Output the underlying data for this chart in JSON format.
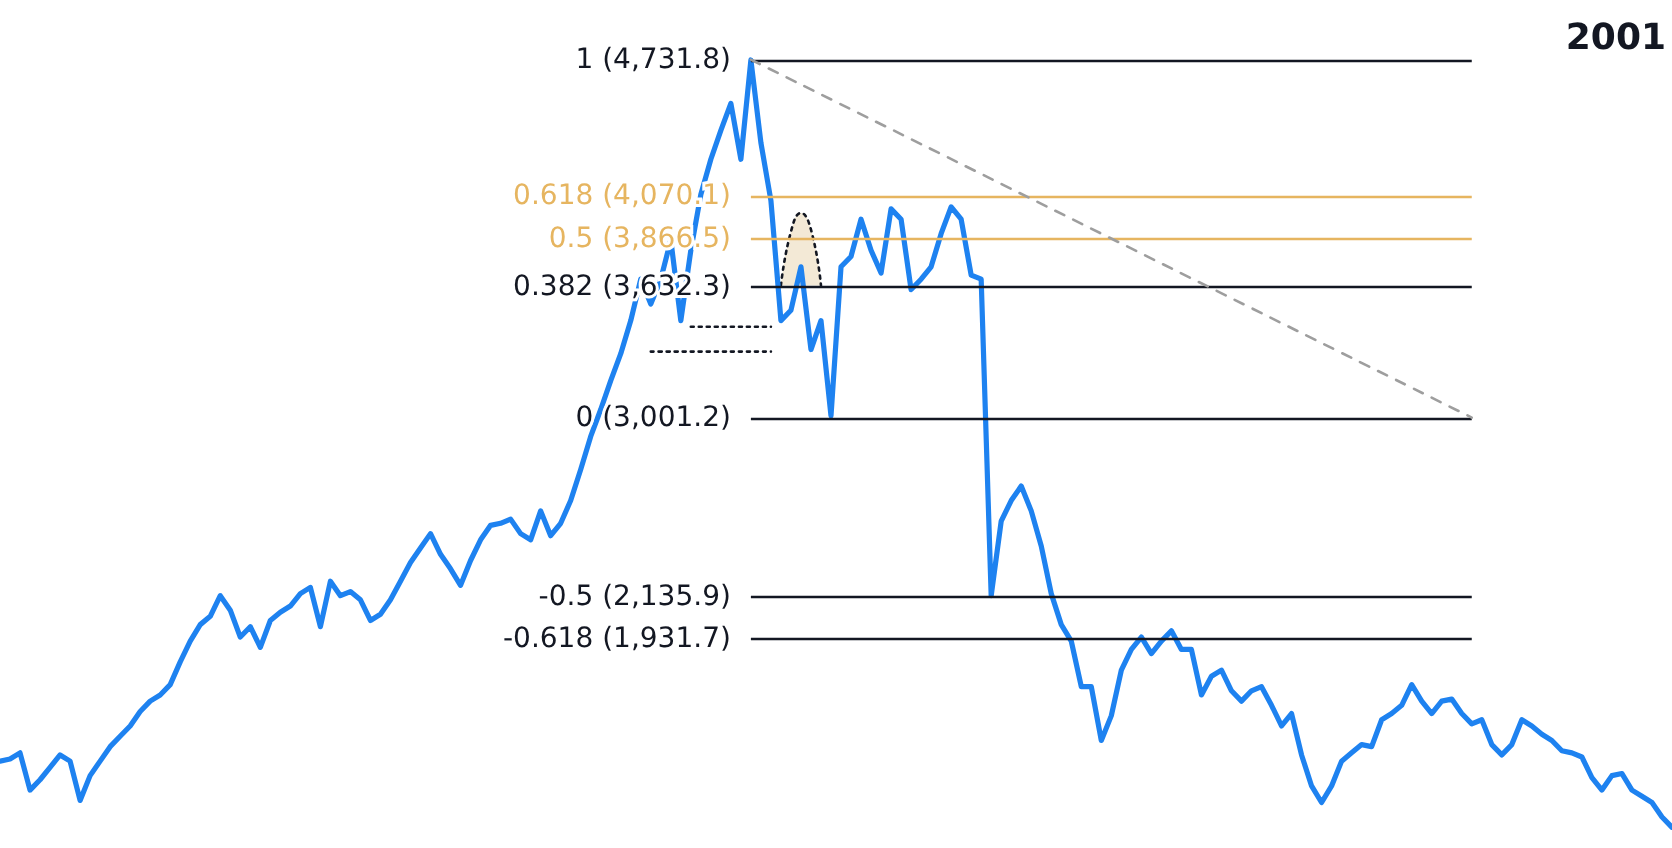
{
  "chart_data": {
    "type": "line",
    "marker": "none",
    "tick_labels": false,
    "ylim": [
      920,
      5020
    ],
    "annotations": [
      "2001"
    ],
    "categories": [
      null,
      null,
      null,
      null,
      null,
      null,
      null,
      null,
      null,
      null,
      null,
      null,
      null,
      null,
      null,
      null,
      null,
      null,
      null,
      null,
      null,
      null,
      null,
      null,
      null,
      null,
      null,
      null,
      null,
      null,
      null,
      null,
      null,
      null,
      null,
      null,
      null,
      null,
      null,
      null,
      null,
      null,
      null,
      null,
      null,
      null,
      null,
      null,
      null,
      null,
      null,
      null,
      null,
      null,
      null,
      null,
      null,
      null,
      null,
      null,
      null,
      null,
      null,
      null,
      null,
      null,
      null,
      null,
      null,
      null,
      null,
      null,
      null,
      null,
      null,
      null,
      null,
      null,
      null,
      null,
      null,
      null,
      null,
      null,
      null,
      null,
      null,
      null,
      null,
      null,
      null,
      null,
      null,
      null,
      null,
      null,
      null,
      null,
      null,
      null,
      null,
      null,
      null,
      null,
      null,
      null,
      null,
      null,
      null,
      null,
      null,
      null,
      null,
      null,
      null,
      null,
      null,
      null,
      null,
      null,
      null,
      null,
      null,
      null,
      null,
      null,
      null,
      null,
      null,
      null,
      null,
      null,
      null,
      null,
      null,
      null,
      null,
      null,
      null,
      null,
      null,
      null,
      null,
      null,
      null,
      null,
      null,
      null,
      null,
      null,
      null,
      null,
      null,
      null,
      null,
      null,
      null,
      null,
      null,
      null,
      null,
      null,
      null,
      null,
      null,
      null,
      null,
      null
    ],
    "series": [
      {
        "color": "#1e82f0",
        "values": [
          1340,
          1350,
          1380,
          1200,
          1250,
          1310,
          1370,
          1340,
          1150,
          1270,
          1340,
          1410,
          1460,
          1510,
          1580,
          1630,
          1660,
          1710,
          1820,
          1920,
          2000,
          2040,
          2140,
          2070,
          1940,
          1990,
          1890,
          2020,
          2060,
          2090,
          2150,
          2180,
          1990,
          2210,
          2140,
          2160,
          2120,
          2020,
          2050,
          2120,
          2210,
          2300,
          2370,
          2440,
          2340,
          2270,
          2190,
          2310,
          2410,
          2480,
          2490,
          2510,
          2440,
          2410,
          2550,
          2430,
          2490,
          2600,
          2750,
          2910,
          3040,
          3180,
          3310,
          3470,
          3670,
          3550,
          3670,
          3860,
          3470,
          3810,
          4080,
          4250,
          4390,
          4520,
          4250,
          4730,
          4330,
          4050,
          3470,
          3520,
          3730,
          3330,
          3470,
          3010,
          3730,
          3780,
          3960,
          3810,
          3700,
          4010,
          3960,
          3620,
          3670,
          3730,
          3890,
          4020,
          3960,
          3690,
          3670,
          2140,
          2500,
          2600,
          2670,
          2550,
          2380,
          2150,
          2000,
          1920,
          1700,
          1700,
          1440,
          1560,
          1780,
          1880,
          1940,
          1860,
          1920,
          1970,
          1880,
          1880,
          1660,
          1750,
          1780,
          1680,
          1630,
          1680,
          1700,
          1610,
          1510,
          1570,
          1370,
          1220,
          1140,
          1220,
          1340,
          1380,
          1420,
          1410,
          1540,
          1570,
          1610,
          1710,
          1630,
          1570,
          1630,
          1640,
          1570,
          1520,
          1540,
          1420,
          1370,
          1420,
          1540,
          1510,
          1470,
          1440,
          1390,
          1380,
          1360,
          1260,
          1200,
          1270,
          1280,
          1200,
          1170,
          1140,
          1070,
          1020
        ]
      },
      {
        "type": "line",
        "color": "#9e9e9e",
        "line_style": "dashed",
        "values": [
          null,
          null,
          null,
          null,
          null,
          null,
          null,
          null,
          null,
          null,
          null,
          null,
          null,
          null,
          null,
          null,
          null,
          null,
          null,
          null,
          null,
          null,
          null,
          null,
          null,
          null,
          null,
          null,
          null,
          null,
          null,
          null,
          null,
          null,
          null,
          null,
          null,
          null,
          null,
          null,
          null,
          null,
          null,
          null,
          null,
          null,
          null,
          null,
          null,
          null,
          null,
          null,
          null,
          null,
          null,
          null,
          null,
          null,
          null,
          null,
          null,
          null,
          null,
          null,
          null,
          null,
          null,
          null,
          null,
          null,
          null,
          null,
          null,
          null,
          null,
          4731.8,
          null,
          null,
          null,
          null,
          null,
          null,
          null,
          null,
          null,
          null,
          null,
          null,
          null,
          null,
          null,
          null,
          null,
          null,
          null,
          null,
          null,
          null,
          null,
          null,
          null,
          null,
          null,
          null,
          null,
          null,
          null,
          null,
          null,
          null,
          null,
          null,
          null,
          null,
          null,
          null,
          null,
          null,
          null,
          null,
          null,
          null,
          null,
          null,
          null,
          null,
          null,
          null,
          null,
          null,
          null,
          null,
          null,
          null,
          null,
          null,
          null,
          null,
          null,
          null,
          null,
          null,
          null,
          null,
          null,
          null,
          null,
          3001.2,
          null,
          null,
          null,
          null,
          null,
          null,
          null,
          null,
          null,
          null,
          null,
          null,
          null,
          null,
          null,
          null,
          null,
          null,
          null,
          null
        ]
      },
      {
        "type": "line",
        "color": "#131722",
        "line_style": "dotted",
        "values": [
          null,
          null,
          null,
          null,
          null,
          null,
          null,
          null,
          null,
          null,
          null,
          null,
          null,
          null,
          null,
          null,
          null,
          null,
          null,
          null,
          null,
          null,
          null,
          null,
          null,
          null,
          null,
          null,
          null,
          null,
          null,
          null,
          null,
          null,
          null,
          null,
          null,
          null,
          null,
          null,
          null,
          null,
          null,
          null,
          null,
          null,
          null,
          null,
          null,
          null,
          null,
          null,
          null,
          null,
          null,
          null,
          null,
          null,
          null,
          null,
          null,
          null,
          null,
          null,
          null,
          null,
          null,
          null,
          null,
          3440,
          null,
          null,
          null,
          null,
          null,
          null,
          null,
          3440,
          null,
          null,
          null,
          null,
          null,
          null,
          null,
          null,
          null,
          null,
          null,
          null,
          null,
          null,
          null,
          null,
          null,
          null,
          null,
          null,
          null,
          null,
          null,
          null,
          null,
          null,
          null,
          null,
          null,
          null,
          null,
          null,
          null,
          null,
          null,
          null,
          null,
          null,
          null,
          null,
          null,
          null,
          null,
          null,
          null,
          null,
          null,
          null,
          null,
          null,
          null,
          null,
          null,
          null,
          null,
          null,
          null,
          null,
          null,
          null,
          null,
          null,
          null,
          null,
          null,
          null,
          null,
          null,
          null,
          null,
          null,
          null,
          null,
          null,
          null,
          null,
          null,
          null,
          null,
          null,
          null,
          null,
          null,
          null,
          null,
          null,
          null,
          null,
          null,
          null
        ]
      },
      {
        "type": "line",
        "color": "#131722",
        "line_style": "dotted",
        "values": [
          null,
          null,
          null,
          null,
          null,
          null,
          null,
          null,
          null,
          null,
          null,
          null,
          null,
          null,
          null,
          null,
          null,
          null,
          null,
          null,
          null,
          null,
          null,
          null,
          null,
          null,
          null,
          null,
          null,
          null,
          null,
          null,
          null,
          null,
          null,
          null,
          null,
          null,
          null,
          null,
          null,
          null,
          null,
          null,
          null,
          null,
          null,
          null,
          null,
          null,
          null,
          null,
          null,
          null,
          null,
          null,
          null,
          null,
          null,
          null,
          null,
          null,
          null,
          null,
          null,
          3320,
          null,
          null,
          null,
          null,
          null,
          null,
          null,
          null,
          null,
          null,
          null,
          3320,
          null,
          null,
          null,
          null,
          null,
          null,
          null,
          null,
          null,
          null,
          null,
          null,
          null,
          null,
          null,
          null,
          null,
          null,
          null,
          null,
          null,
          null,
          null,
          null,
          null,
          null,
          null,
          null,
          null,
          null,
          null,
          null,
          null,
          null,
          null,
          null,
          null,
          null,
          null,
          null,
          null,
          null,
          null,
          null,
          null,
          null,
          null,
          null,
          null,
          null,
          null,
          null,
          null,
          null,
          null,
          null,
          null,
          null,
          null,
          null,
          null,
          null,
          null,
          null,
          null,
          null,
          null,
          null,
          null,
          null,
          null,
          null,
          null,
          null,
          null,
          null,
          null,
          null,
          null,
          null,
          null,
          null,
          null,
          null,
          null,
          null,
          null,
          null,
          null,
          null
        ]
      },
      {
        "type": "area",
        "color": "#f3e9d6",
        "line_style": "dotted",
        "values": [
          null,
          null,
          null,
          null,
          null,
          null,
          null,
          null,
          null,
          null,
          null,
          null,
          null,
          null,
          null,
          null,
          null,
          null,
          null,
          null,
          null,
          null,
          null,
          null,
          null,
          null,
          null,
          null,
          null,
          null,
          null,
          null,
          null,
          null,
          null,
          null,
          null,
          null,
          null,
          null,
          null,
          null,
          null,
          null,
          null,
          null,
          null,
          null,
          null,
          null,
          null,
          null,
          null,
          null,
          null,
          null,
          null,
          null,
          null,
          null,
          null,
          null,
          null,
          null,
          null,
          null,
          null,
          null,
          null,
          null,
          null,
          null,
          null,
          null,
          null,
          null,
          null,
          null,
          3640,
          3900,
          3990,
          3910,
          3640,
          null,
          null,
          null,
          null,
          null,
          null,
          null,
          null,
          null,
          null,
          null,
          null,
          null,
          null,
          null,
          null,
          null,
          null,
          null,
          null,
          null,
          null,
          null,
          null,
          null,
          null,
          null,
          null,
          null,
          null,
          null,
          null,
          null,
          null,
          null,
          null,
          null,
          null,
          null,
          null,
          null,
          null,
          null,
          null,
          null,
          null,
          null,
          null,
          null,
          null,
          null,
          null,
          null,
          null,
          null,
          null,
          null,
          null,
          null,
          null,
          null,
          null,
          null,
          null,
          null,
          null,
          null,
          null,
          null,
          null,
          null,
          null,
          null,
          null,
          null,
          null,
          null,
          null,
          null,
          null,
          null,
          null,
          null,
          null,
          null
        ]
      }
    ],
    "ref_lines": [
      {
        "axis": "y",
        "value": 4731.8,
        "label": "1 (4,731.8)",
        "color": "#131722"
      },
      {
        "axis": "y",
        "value": 4070.1,
        "label": "0.618 (4,070.1)",
        "color": "#e6b560"
      },
      {
        "axis": "y",
        "value": 3866.5,
        "label": "0.5 (3,866.5)",
        "color": "#e6b560"
      },
      {
        "axis": "y",
        "value": 3632.3,
        "label": "0.382 (3,632.3)",
        "color": "#131722"
      },
      {
        "axis": "y",
        "value": 3001.2,
        "label": "0 (3,001.2)",
        "color": "#131722"
      },
      {
        "axis": "y",
        "value": 2135.9,
        "label": "-0.5 (2,135.9)",
        "color": "#131722"
      },
      {
        "axis": "y",
        "value": 1931.7,
        "label": "-0.618 (1,931.7)",
        "color": "#131722"
      }
    ]
  }
}
